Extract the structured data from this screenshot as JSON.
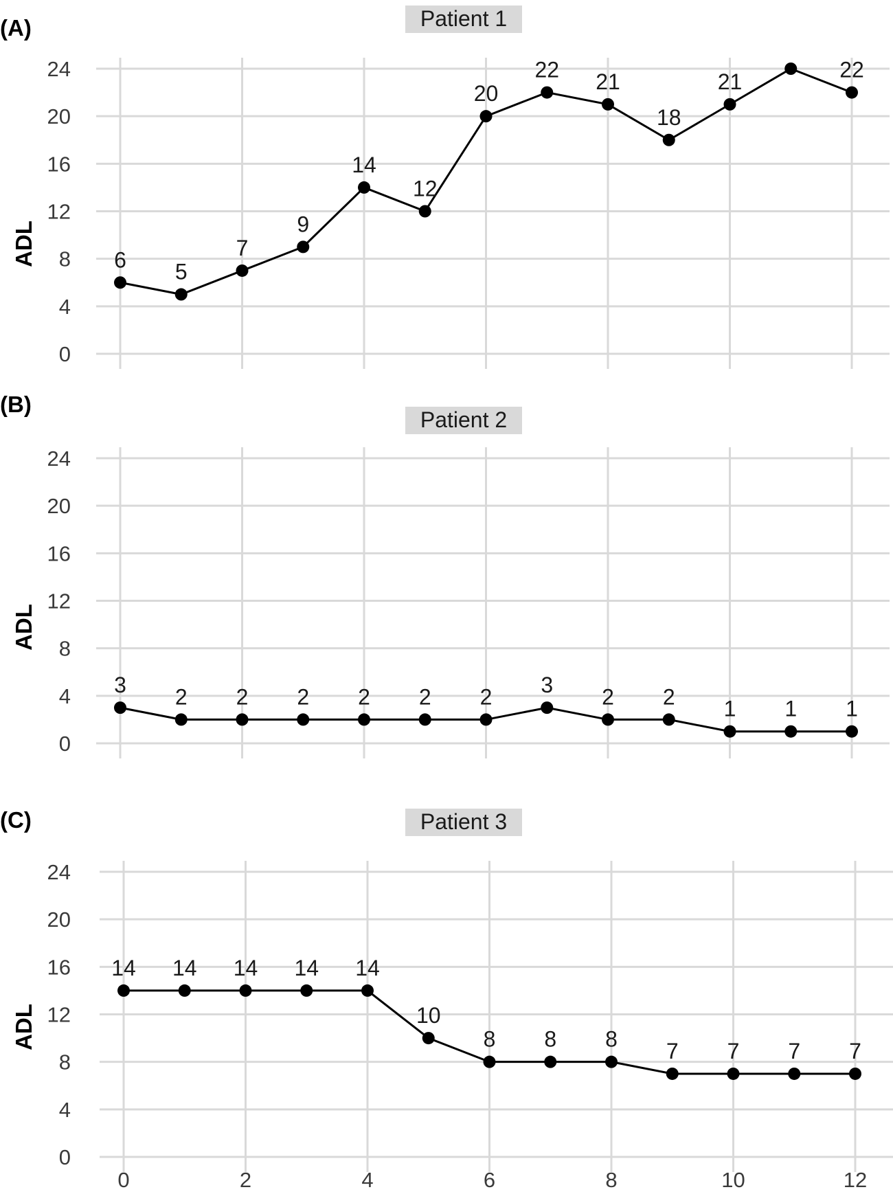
{
  "chart_data": [
    {
      "type": "line",
      "panel_tag": "(A)",
      "title": "Patient 1",
      "ylabel": "ADL",
      "xlabel": "",
      "x": [
        0,
        1,
        2,
        3,
        4,
        5,
        6,
        7,
        8,
        9,
        10,
        11,
        12
      ],
      "values": [
        6,
        5,
        7,
        9,
        14,
        12,
        20,
        22,
        21,
        18,
        21,
        24,
        22
      ],
      "data_labels": [
        "6",
        "5",
        "7",
        "9",
        "14",
        "12",
        "20",
        "22",
        "21",
        "18",
        "21",
        "",
        "22"
      ],
      "yticks": [
        0,
        4,
        8,
        12,
        16,
        20,
        24
      ],
      "xticks": [],
      "ylim": [
        0,
        24
      ],
      "xlim": [
        0,
        12
      ],
      "grid": true
    },
    {
      "type": "line",
      "panel_tag": "(B)",
      "title": "Patient 2",
      "ylabel": "ADL",
      "xlabel": "",
      "x": [
        0,
        1,
        2,
        3,
        4,
        5,
        6,
        7,
        8,
        9,
        10,
        11,
        12
      ],
      "values": [
        3,
        2,
        2,
        2,
        2,
        2,
        2,
        3,
        2,
        2,
        1,
        1,
        1
      ],
      "data_labels": [
        "3",
        "2",
        "2",
        "2",
        "2",
        "2",
        "2",
        "3",
        "2",
        "2",
        "1",
        "1",
        "1"
      ],
      "yticks": [
        0,
        4,
        8,
        12,
        16,
        20,
        24
      ],
      "xticks": [],
      "ylim": [
        0,
        24
      ],
      "xlim": [
        0,
        12
      ],
      "grid": true
    },
    {
      "type": "line",
      "panel_tag": "(C)",
      "title": "Patient 3",
      "ylabel": "ADL",
      "xlabel": "",
      "x": [
        0,
        1,
        2,
        3,
        4,
        5,
        6,
        7,
        8,
        9,
        10,
        11,
        12
      ],
      "values": [
        14,
        14,
        14,
        14,
        14,
        10,
        8,
        8,
        8,
        7,
        7,
        7,
        7
      ],
      "data_labels": [
        "14",
        "14",
        "14",
        "14",
        "14",
        "10",
        "8",
        "8",
        "8",
        "7",
        "7",
        "7",
        "7"
      ],
      "yticks": [
        0,
        4,
        8,
        12,
        16,
        20,
        24
      ],
      "xticks": [
        0,
        2,
        4,
        6,
        8,
        10,
        12
      ],
      "ylim": [
        0,
        24
      ],
      "xlim": [
        0,
        12
      ],
      "grid": true
    }
  ],
  "colors": {
    "line": "#000000",
    "grid": "#d9d9d9",
    "strip": "#d9d9d9"
  }
}
